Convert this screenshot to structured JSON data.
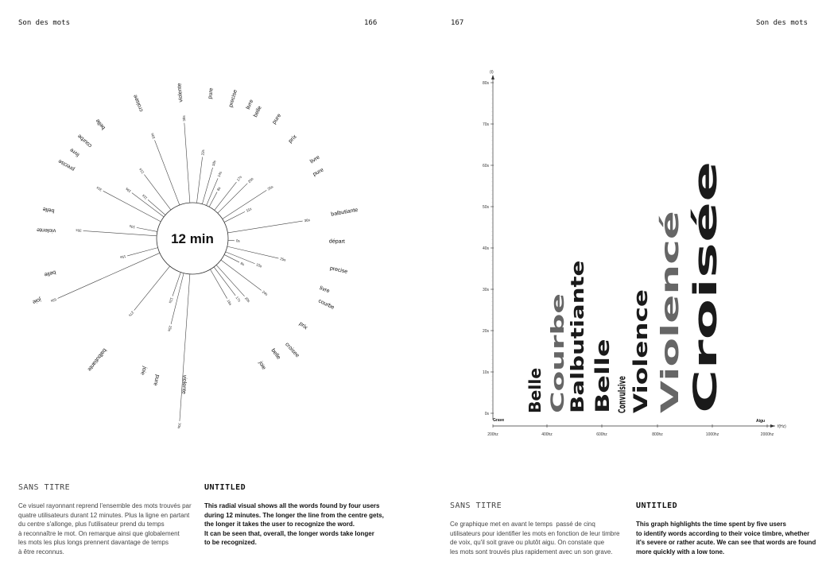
{
  "header": {
    "left_title": "Son des mots",
    "left_page": "166",
    "right_page": "167",
    "right_title": "Son des mots"
  },
  "left": {
    "title_fr": "SANS TITRE",
    "title_en": "UNTITLED",
    "body_fr": "Ce visuel rayonnant reprend l'ensemble des mots trouvés par\nquatre utilisateurs durant 12 minutes. Plus la ligne en partant\ndu centre s'allonge, plus l'utilisateur prend du temps\nà reconnaître le mot. On remarque ainsi que globalement\nles mots les plus longs prennent davantage de temps\nà être reconnus.",
    "body_en": "This radial visual shows all the words found by four users\nduring 12 minutes. The longer the line from the centre gets,\nthe longer it takes the user to recognize the word.\nIt can be seen that, overall, the longer words take longer\nto be recognized."
  },
  "right": {
    "title_fr": "SANS TITRE",
    "title_en": "UNTITLED",
    "body_fr": "Ce graphique met en avant le temps  passé de cinq\nutilisateurs pour identifier les mots en fonction de leur timbre\nde voix, qu'il soit grave ou plutôt aigu. On constate que\nles mots sont trouvés plus rapidement avec un son grave.",
    "body_en": "This graph highlights the time spent by five users\nto identify words according to their voice timbre, whether\nit's severe or rather acute. We can see that words are found\nmore quickly with a low tone."
  },
  "chart_data": [
    {
      "type": "radial",
      "center_label": "12 min",
      "spokes": [
        {
          "angle_deg": 339,
          "label": "33s",
          "seconds": 33
        },
        {
          "angle_deg": 356,
          "label": "38s",
          "seconds": 38
        },
        {
          "angle_deg": 7,
          "label": "22s",
          "seconds": 22
        },
        {
          "angle_deg": 16,
          "label": "18s",
          "seconds": 18
        },
        {
          "angle_deg": 23,
          "label": "14s",
          "seconds": 14
        },
        {
          "angle_deg": 28,
          "label": "8s",
          "seconds": 8
        },
        {
          "angle_deg": 38,
          "label": "17s",
          "seconds": 17
        },
        {
          "angle_deg": 45,
          "label": "20s",
          "seconds": 20
        },
        {
          "angle_deg": 57,
          "label": "25s",
          "seconds": 25
        },
        {
          "angle_deg": 63,
          "label": "11s",
          "seconds": 11
        },
        {
          "angle_deg": 81,
          "label": "36s",
          "seconds": 36
        },
        {
          "angle_deg": 93,
          "label": "0s",
          "seconds": 0
        },
        {
          "angle_deg": 103,
          "label": "25s",
          "seconds": 25
        },
        {
          "angle_deg": 112,
          "label": "15s",
          "seconds": 15
        },
        {
          "angle_deg": 117,
          "label": "8s",
          "seconds": 8
        },
        {
          "angle_deg": 127,
          "label": "24s",
          "seconds": 24
        },
        {
          "angle_deg": 138,
          "label": "20s",
          "seconds": 20
        },
        {
          "angle_deg": 143,
          "label": "17s",
          "seconds": 17
        },
        {
          "angle_deg": 150,
          "label": "16s",
          "seconds": 16
        },
        {
          "angle_deg": 184,
          "label": "70s",
          "seconds": 70
        },
        {
          "angle_deg": 194,
          "label": "25s",
          "seconds": 25
        },
        {
          "angle_deg": 199,
          "label": "12s",
          "seconds": 12
        },
        {
          "angle_deg": 219,
          "label": "27s",
          "seconds": 27
        },
        {
          "angle_deg": 246,
          "label": "53s",
          "seconds": 53
        },
        {
          "angle_deg": 255,
          "label": "15s",
          "seconds": 15
        },
        {
          "angle_deg": 274,
          "label": "35s",
          "seconds": 35
        },
        {
          "angle_deg": 281,
          "label": "10s",
          "seconds": 10
        },
        {
          "angle_deg": 298,
          "label": "31s",
          "seconds": 31
        },
        {
          "angle_deg": 307,
          "label": "19s",
          "seconds": 19
        },
        {
          "angle_deg": 311,
          "label": "11s",
          "seconds": 11
        },
        {
          "angle_deg": 323,
          "label": "21s",
          "seconds": 21
        }
      ],
      "words": [
        {
          "word": "violente",
          "angle_deg": 355
        },
        {
          "word": "pure",
          "angle_deg": 7
        },
        {
          "word": "precise",
          "angle_deg": 16
        },
        {
          "word": "livre",
          "angle_deg": 23
        },
        {
          "word": "belle",
          "angle_deg": 27
        },
        {
          "word": "pure",
          "angle_deg": 35
        },
        {
          "word": "prix",
          "angle_deg": 45
        },
        {
          "word": "livre",
          "angle_deg": 57
        },
        {
          "word": "pure",
          "angle_deg": 62
        },
        {
          "word": "balbutiante",
          "angle_deg": 80
        },
        {
          "word": "départ",
          "angle_deg": 91
        },
        {
          "word": "precise",
          "angle_deg": 102
        },
        {
          "word": "livre",
          "angle_deg": 111
        },
        {
          "word": "courbe",
          "angle_deg": 116
        },
        {
          "word": "prix",
          "angle_deg": 128
        },
        {
          "word": "croisee",
          "angle_deg": 138
        },
        {
          "word": "belle",
          "angle_deg": 144
        },
        {
          "word": "joie",
          "angle_deg": 151
        },
        {
          "word": "violente",
          "angle_deg": 183
        },
        {
          "word": "pure",
          "angle_deg": 194
        },
        {
          "word": "joie",
          "angle_deg": 200
        },
        {
          "word": "balbutiante",
          "angle_deg": 218
        },
        {
          "word": "joie",
          "angle_deg": 248
        },
        {
          "word": "belle",
          "angle_deg": 256
        },
        {
          "word": "violente",
          "angle_deg": 273
        },
        {
          "word": "belle",
          "angle_deg": 281
        },
        {
          "word": "precise",
          "angle_deg": 300
        },
        {
          "word": "livre",
          "angle_deg": 306
        },
        {
          "word": "courbe",
          "angle_deg": 312
        },
        {
          "word": "belle",
          "angle_deg": 321
        },
        {
          "word": "croisee",
          "angle_deg": 338
        }
      ]
    },
    {
      "type": "word-bars",
      "ylabel": "(t)",
      "xlabel": "f(Hz)",
      "x_left_label": "Grave",
      "x_right_label": "Aigu",
      "y_ticks": [
        "0s",
        "10s",
        "20s",
        "30s",
        "40s",
        "50s",
        "60s",
        "70s",
        "80s"
      ],
      "ylim": [
        0,
        80
      ],
      "x_ticks": [
        "200hz",
        "400hz",
        "600hz",
        "800hz",
        "1000hz",
        "2000hz"
      ],
      "words": [
        {
          "word": "Belle",
          "hz": 354,
          "seconds": 11,
          "color": "#1a1a1a"
        },
        {
          "word": "Courbe",
          "hz": 437,
          "seconds": 29,
          "color": "#666666"
        },
        {
          "word": "Balbutiante",
          "hz": 509,
          "seconds": 37,
          "color": "#1a1a1a"
        },
        {
          "word": "Belle",
          "hz": 600,
          "seconds": 18,
          "color": "#1a1a1a"
        },
        {
          "word": "Convulsive",
          "hz": 671,
          "seconds": 9,
          "color": "#1a1a1a"
        },
        {
          "word": "Violence",
          "hz": 737,
          "seconds": 30,
          "color": "#1a1a1a"
        },
        {
          "word": "Violencé",
          "hz": 843,
          "seconds": 49,
          "color": "#666666"
        },
        {
          "word": "Croisée",
          "hz": 971,
          "seconds": 61,
          "color": "#1a1a1a"
        }
      ]
    }
  ]
}
